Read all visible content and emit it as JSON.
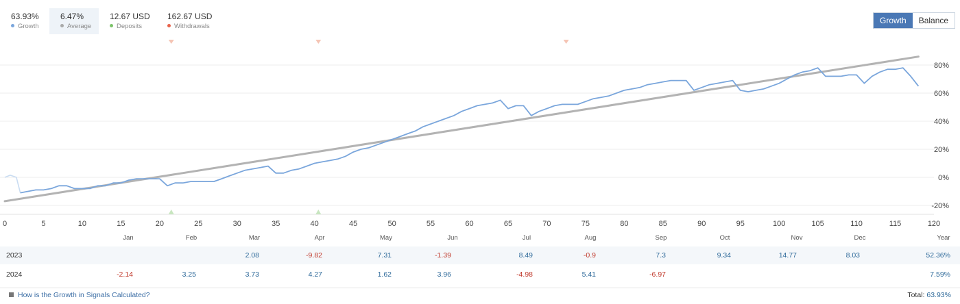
{
  "header": {
    "stats": [
      {
        "value": "63.93%",
        "label": "Growth",
        "dot_color": "#7aa6dc",
        "active": false
      },
      {
        "value": "6.47%",
        "label": "Average",
        "dot_color": "#a9a9a9",
        "active": true
      },
      {
        "value": "12.67 USD",
        "label": "Deposits",
        "dot_color": "#7cc36a",
        "active": false
      },
      {
        "value": "162.67 USD",
        "label": "Withdrawals",
        "dot_color": "#e8624a",
        "active": false
      }
    ],
    "toggle": {
      "growth_label": "Growth",
      "balance_label": "Balance",
      "selected": "Growth"
    }
  },
  "chart_data": {
    "type": "line",
    "x_ticks": [
      0,
      5,
      10,
      15,
      20,
      25,
      30,
      35,
      40,
      45,
      50,
      55,
      60,
      65,
      70,
      75,
      80,
      85,
      90,
      95,
      100,
      105,
      110,
      115,
      120
    ],
    "y_ticks": [
      -20,
      0,
      20,
      40,
      60,
      80
    ],
    "y_tick_labels": [
      "-20%",
      "0%",
      "20%",
      "40%",
      "60%",
      "80%"
    ],
    "xlim": [
      0,
      120
    ],
    "ylim": [
      -25,
      95
    ],
    "grid": "horizontal",
    "series": [
      {
        "color": "#7aa6dc",
        "x": [
          0,
          0.7,
          1.5,
          2,
          3,
          4,
          5,
          6,
          7,
          8,
          9,
          10,
          11,
          12,
          13,
          14,
          15,
          16,
          17,
          18,
          19,
          20,
          21,
          22,
          23,
          24,
          25,
          26,
          27,
          28,
          29,
          30,
          31,
          32,
          33,
          34,
          35,
          36,
          37,
          38,
          39,
          40,
          41,
          42,
          43,
          44,
          45,
          46,
          47,
          48,
          49,
          50,
          51,
          52,
          53,
          54,
          55,
          56,
          57,
          58,
          59,
          60,
          61,
          62,
          63,
          64,
          65,
          66,
          67,
          68,
          69,
          70,
          71,
          72,
          73,
          74,
          75,
          76,
          77,
          78,
          79,
          80,
          81,
          82,
          83,
          84,
          85,
          86,
          87,
          88,
          89,
          90,
          91,
          92,
          93,
          94,
          95,
          96,
          97,
          98,
          99,
          100,
          101,
          102,
          103,
          104,
          105,
          106,
          107,
          108,
          109,
          110,
          111,
          112,
          113,
          114,
          115,
          116,
          117,
          118
        ],
        "y": [
          0,
          1.5,
          0,
          -11,
          -10,
          -9,
          -9,
          -8,
          -6,
          -6,
          -8,
          -8,
          -8,
          -6,
          -6,
          -4,
          -4,
          -2,
          -1,
          -1,
          -1,
          -1,
          -6,
          -4,
          -4,
          -3,
          -3,
          -3,
          -3,
          -1,
          1,
          3,
          5,
          6,
          7,
          8,
          3,
          3,
          5,
          6,
          8,
          10,
          11,
          12,
          13,
          15,
          18,
          20,
          21,
          23,
          25,
          27,
          29,
          31,
          33,
          36,
          38,
          40,
          42,
          44,
          47,
          49,
          51,
          52,
          53,
          55,
          49,
          51,
          51,
          44,
          47,
          49,
          51,
          52,
          52,
          52,
          54,
          56,
          57,
          58,
          60,
          62,
          63,
          64,
          66,
          67,
          68,
          69,
          69,
          69,
          62,
          64,
          66,
          67,
          68,
          69,
          62,
          61,
          62,
          63,
          65,
          67,
          70,
          73,
          75,
          76,
          78,
          72,
          72,
          72,
          73,
          73,
          67,
          72,
          75,
          77,
          77,
          78,
          72,
          65
        ],
        "dashed_segment_end_x": 2
      },
      {
        "color": "#b3b3b3",
        "x": [
          0,
          118
        ],
        "y": [
          -17,
          86
        ]
      }
    ],
    "markers": {
      "withdrawals_x": [
        21.5,
        40.5,
        72.5
      ],
      "deposits_x": [
        21.5,
        40.5
      ]
    },
    "month_labels": [
      "Jan",
      "Feb",
      "Mar",
      "Apr",
      "May",
      "Jun",
      "Jul",
      "Aug",
      "Sep",
      "Oct",
      "Nov",
      "Dec",
      "Year"
    ]
  },
  "table": {
    "rows": [
      {
        "year": "2023",
        "cells": [
          "",
          "",
          "2.08",
          "-9.82",
          "7.31",
          "-1.39",
          "8.49",
          "-0.9",
          "7.3",
          "9.34",
          "14.77",
          "8.03",
          "52.36%"
        ]
      },
      {
        "year": "2024",
        "cells": [
          "-2.14",
          "3.25",
          "3.73",
          "4.27",
          "1.62",
          "3.96",
          "-4.98",
          "5.41",
          "-6.97",
          "",
          "",
          "",
          "7.59%"
        ]
      }
    ]
  },
  "footer": {
    "help_text": "How is the Growth in Signals Calculated?",
    "total_label": "Total:",
    "total_value": "63.93%"
  }
}
